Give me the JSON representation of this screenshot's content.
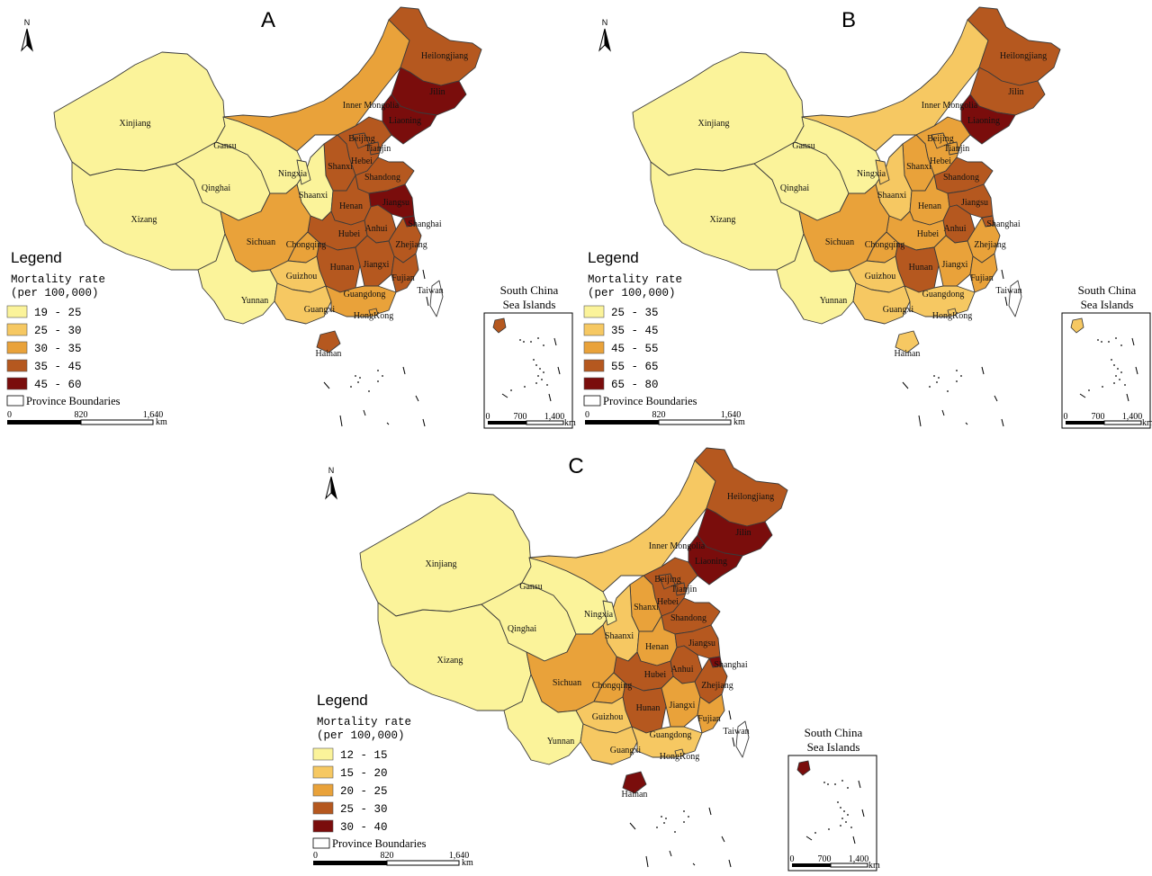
{
  "figure": {
    "panels": [
      {
        "letter": "A",
        "legend": {
          "title": "Legend",
          "subtitle_line1": "Mortality rate",
          "subtitle_line2": "(per 100,000)",
          "classes": [
            "19 - 25",
            "25 - 30",
            "30 - 35",
            "35 - 45",
            "45 - 60"
          ],
          "boundary_label": "Province Boundaries"
        },
        "scale": {
          "ticks": [
            "0",
            "820",
            "1,640"
          ],
          "unit": "km"
        },
        "inset": {
          "title_line1": "South China",
          "title_line2": "Sea Islands",
          "ticks": [
            "0",
            "700",
            "1,400"
          ],
          "unit": "km"
        },
        "province_class": {
          "Xinjiang": 0,
          "Xizang": 0,
          "Qinghai": 0,
          "Gansu": 0,
          "Ningxia": 0,
          "Yunnan": 0,
          "Inner Mongolia": 2,
          "Sichuan": 2,
          "Guangxi": 1,
          "Guizhou": 1,
          "Shaanxi": 0,
          "Heilongjiang": 3,
          "Jilin": 4,
          "Liaoning": 4,
          "Beijing": 3,
          "Tianjin": 3,
          "Hebei": 3,
          "Shanxi": 3,
          "Shandong": 3,
          "Henan": 3,
          "Hubei": 3,
          "Hunan": 3,
          "Anhui": 3,
          "Jiangsu": 4,
          "Shanghai": 4,
          "Zhejiang": 3,
          "Jiangxi": 3,
          "Fujian": 3,
          "Guangdong": 2,
          "Hong Kong": 2,
          "Chongqing": 2,
          "Hainan": 3,
          "Taiwan": -1
        },
        "inset_class": 3
      },
      {
        "letter": "B",
        "legend": {
          "title": "Legend",
          "subtitle_line1": "Mortality rate",
          "subtitle_line2": "(per 100,000)",
          "classes": [
            "25 - 35",
            "35 - 45",
            "45 - 55",
            "55 - 65",
            "65 - 80"
          ],
          "boundary_label": "Province Boundaries"
        },
        "scale": {
          "ticks": [
            "0",
            "820",
            "1,640"
          ],
          "unit": "km"
        },
        "inset": {
          "title_line1": "South China",
          "title_line2": "Sea Islands",
          "ticks": [
            "0",
            "700",
            "1,400"
          ],
          "unit": "km"
        },
        "province_class": {
          "Xinjiang": 0,
          "Xizang": 0,
          "Qinghai": 0,
          "Gansu": 0,
          "Ningxia": 1,
          "Yunnan": 0,
          "Inner Mongolia": 1,
          "Sichuan": 2,
          "Guangxi": 1,
          "Guizhou": 1,
          "Shaanxi": 1,
          "Heilongjiang": 3,
          "Jilin": 3,
          "Liaoning": 4,
          "Beijing": 2,
          "Tianjin": 2,
          "Hebei": 2,
          "Shanxi": 2,
          "Shandong": 3,
          "Henan": 2,
          "Hubei": 2,
          "Hunan": 3,
          "Anhui": 3,
          "Jiangsu": 3,
          "Shanghai": 3,
          "Zhejiang": 2,
          "Jiangxi": 2,
          "Fujian": 2,
          "Guangdong": 1,
          "Hong Kong": 1,
          "Chongqing": 2,
          "Hainan": 1,
          "Taiwan": -1
        },
        "inset_class": 1
      },
      {
        "letter": "C",
        "legend": {
          "title": "Legend",
          "subtitle_line1": "Mortality rate",
          "subtitle_line2": "(per 100,000)",
          "classes": [
            "12 - 15",
            "15 - 20",
            "20 - 25",
            "25 - 30",
            "30 - 40"
          ],
          "boundary_label": "Province Boundaries"
        },
        "scale": {
          "ticks": [
            "0",
            "820",
            "1,640"
          ],
          "unit": "km"
        },
        "inset": {
          "title_line1": "South China",
          "title_line2": "Sea Islands",
          "ticks": [
            "0",
            "700",
            "1,400"
          ],
          "unit": "km"
        },
        "province_class": {
          "Xinjiang": 0,
          "Xizang": 0,
          "Qinghai": 0,
          "Gansu": 0,
          "Ningxia": 0,
          "Yunnan": 0,
          "Inner Mongolia": 1,
          "Sichuan": 2,
          "Guangxi": 1,
          "Guizhou": 1,
          "Shaanxi": 1,
          "Heilongjiang": 3,
          "Jilin": 4,
          "Liaoning": 4,
          "Beijing": 3,
          "Tianjin": 3,
          "Hebei": 3,
          "Shanxi": 2,
          "Shandong": 3,
          "Henan": 2,
          "Hubei": 3,
          "Hunan": 3,
          "Anhui": 3,
          "Jiangsu": 3,
          "Shanghai": 4,
          "Zhejiang": 3,
          "Jiangxi": 2,
          "Fujian": 2,
          "Guangdong": 1,
          "Hong Kong": 1,
          "Chongqing": 2,
          "Hainan": 4,
          "Taiwan": -1
        },
        "inset_class": 4
      }
    ],
    "palette": [
      "#fbf39a",
      "#f6c862",
      "#e9a23a",
      "#b5581f",
      "#7a0d0c"
    ],
    "north_label": "N",
    "province_labels": {
      "Xinjiang": "Xinjiang",
      "Xizang": "Xizang",
      "Qinghai": "Qinghai",
      "Gansu": "Gansu",
      "Ningxia": "Ningxia",
      "Inner Mongolia": "Inner Mongolia",
      "Heilongjiang": "Heilongjiang",
      "Jilin": "Jilin",
      "Liaoning": "Liaoning",
      "Beijing": "Beijing",
      "Tianjin": "Tianjin",
      "Hebei": "Hebei",
      "Shanxi": "Shanxi",
      "Shaanxi": "Shaanxi",
      "Shandong": "Shandong",
      "Henan": "Henan",
      "Jiangsu": "Jiangsu",
      "Shanghai": "Shanghai",
      "Anhui": "Anhui",
      "Hubei": "Hubei",
      "Zhejiang": "Zhejiang",
      "Sichuan": "Sichuan",
      "Chongqing": "Chongqing",
      "Hunan": "Hunan",
      "Jiangxi": "Jiangxi",
      "Fujian": "Fujian",
      "Guizhou": "Guizhou",
      "Yunnan": "Yunnan",
      "Guangxi": "Guangxi",
      "Guangdong": "Guangdong",
      "Hong Kong": "HongKong",
      "Taiwan": "Taiwan",
      "Hainan": "Hainan"
    }
  }
}
